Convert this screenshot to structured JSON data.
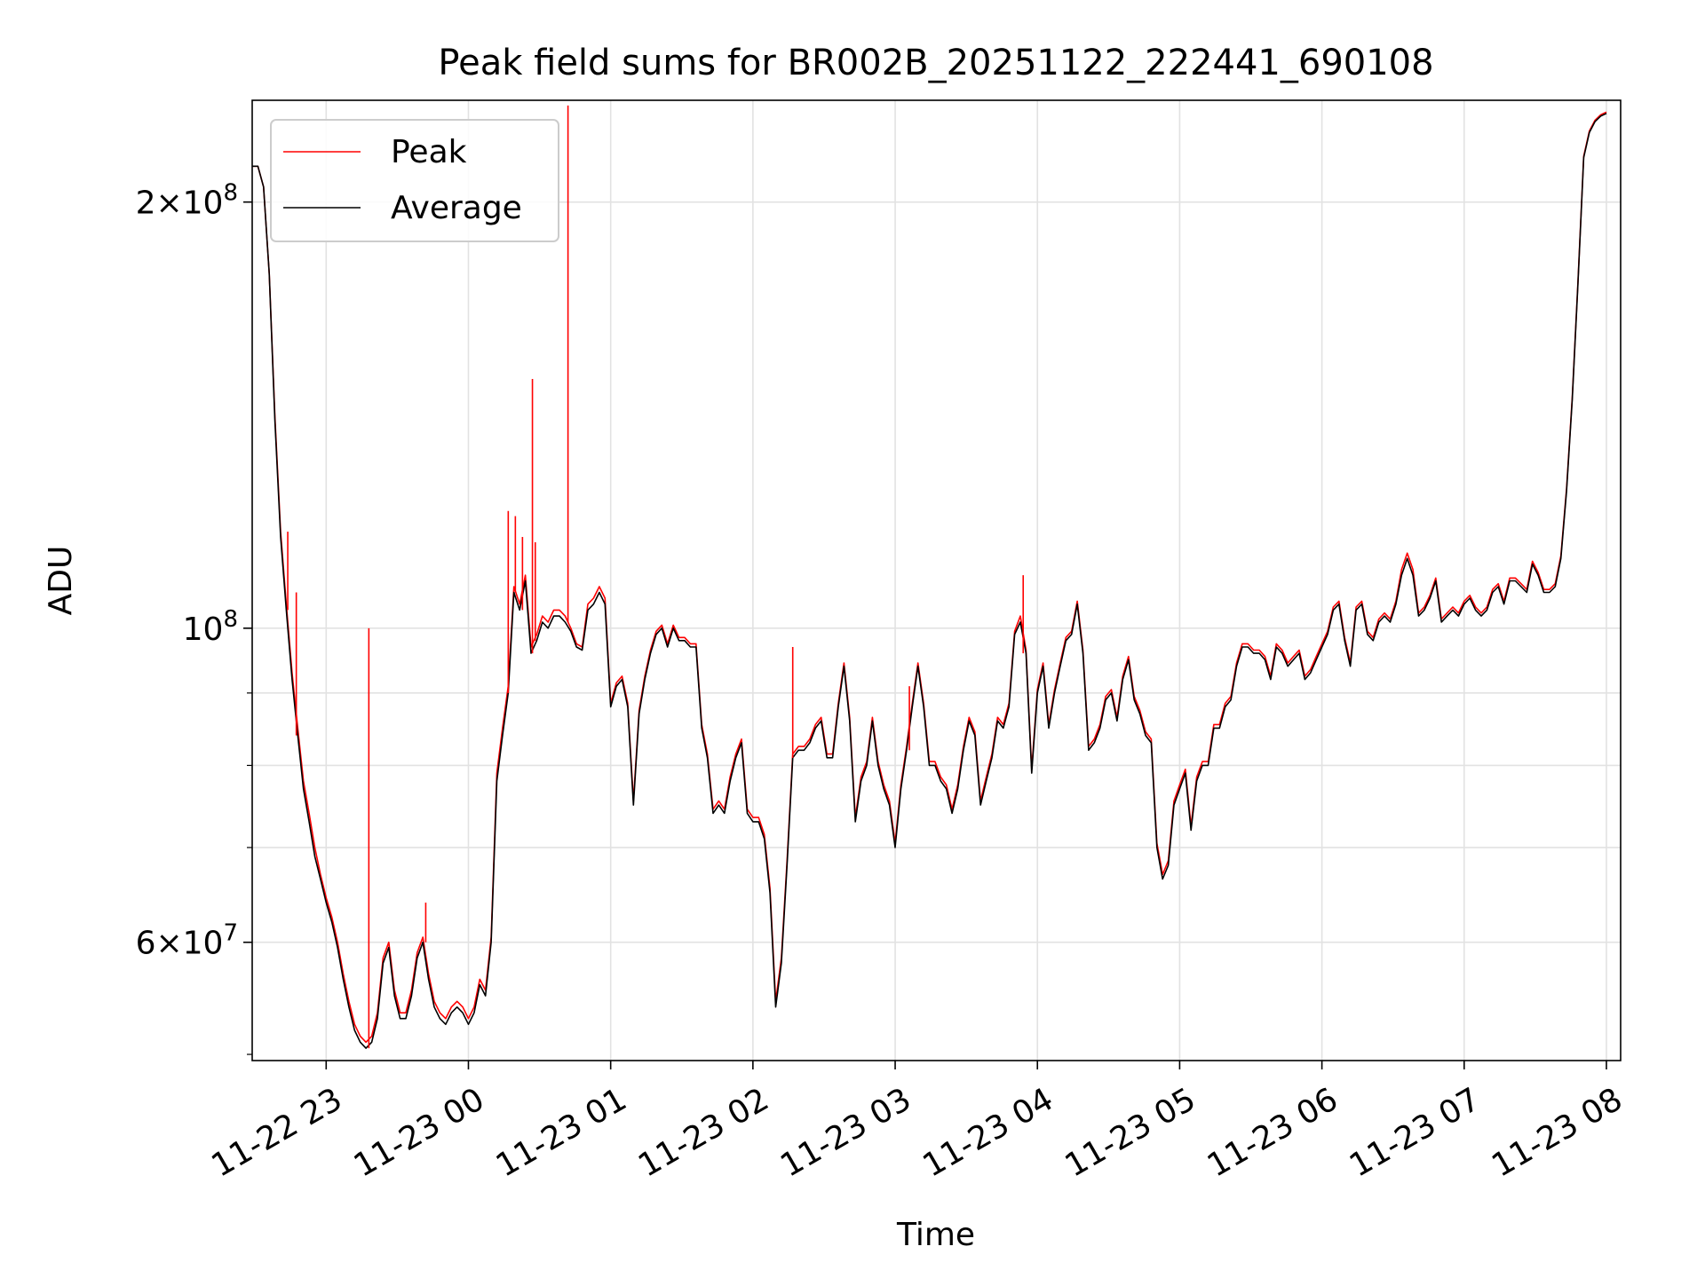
{
  "chart_data": {
    "type": "line",
    "title": "Peak field sums for BR002B_20251122_222441_690108",
    "xlabel": "Time",
    "ylabel": "ADU",
    "yscale": "log",
    "ylim": [
      49500000,
      236000000
    ],
    "xlim_hours": [
      -0.52,
      9.1
    ],
    "grid": true,
    "legend_position": "upper-left",
    "x_ticks": [
      {
        "hour": 0,
        "label": "11-22 23"
      },
      {
        "hour": 1,
        "label": "11-23 00"
      },
      {
        "hour": 2,
        "label": "11-23 01"
      },
      {
        "hour": 3,
        "label": "11-23 02"
      },
      {
        "hour": 4,
        "label": "11-23 03"
      },
      {
        "hour": 5,
        "label": "11-23 04"
      },
      {
        "hour": 6,
        "label": "11-23 05"
      },
      {
        "hour": 7,
        "label": "11-23 06"
      },
      {
        "hour": 8,
        "label": "11-23 07"
      },
      {
        "hour": 9,
        "label": "11-23 08"
      }
    ],
    "y_major_ticks": [
      {
        "value": 60000000,
        "mant": "6",
        "exp": "7"
      },
      {
        "value": 100000000,
        "mant": "",
        "exp": "8"
      },
      {
        "value": 200000000,
        "mant": "2",
        "exp": "8"
      }
    ],
    "y_minor_ticks": [
      50000000,
      70000000,
      80000000,
      90000000
    ],
    "x_hours": [
      -0.52,
      -0.48,
      -0.44,
      -0.4,
      -0.36,
      -0.32,
      -0.28,
      -0.24,
      -0.2,
      -0.16,
      -0.12,
      -0.08,
      -0.04,
      0.0,
      0.04,
      0.08,
      0.12,
      0.16,
      0.2,
      0.24,
      0.28,
      0.32,
      0.36,
      0.4,
      0.44,
      0.48,
      0.52,
      0.56,
      0.6,
      0.64,
      0.68,
      0.72,
      0.76,
      0.8,
      0.84,
      0.88,
      0.92,
      0.96,
      1.0,
      1.04,
      1.08,
      1.12,
      1.16,
      1.2,
      1.24,
      1.28,
      1.32,
      1.36,
      1.4,
      1.44,
      1.48,
      1.52,
      1.56,
      1.6,
      1.64,
      1.68,
      1.72,
      1.76,
      1.8,
      1.84,
      1.88,
      1.92,
      1.96,
      2.0,
      2.04,
      2.08,
      2.12,
      2.16,
      2.2,
      2.24,
      2.28,
      2.32,
      2.36,
      2.4,
      2.44,
      2.48,
      2.52,
      2.56,
      2.6,
      2.64,
      2.68,
      2.72,
      2.76,
      2.8,
      2.84,
      2.88,
      2.92,
      2.96,
      3.0,
      3.04,
      3.08,
      3.12,
      3.16,
      3.2,
      3.24,
      3.28,
      3.32,
      3.36,
      3.4,
      3.44,
      3.48,
      3.52,
      3.56,
      3.6,
      3.64,
      3.68,
      3.72,
      3.76,
      3.8,
      3.84,
      3.88,
      3.92,
      3.96,
      4.0,
      4.04,
      4.08,
      4.12,
      4.16,
      4.2,
      4.24,
      4.28,
      4.32,
      4.36,
      4.4,
      4.44,
      4.48,
      4.52,
      4.56,
      4.6,
      4.64,
      4.68,
      4.72,
      4.76,
      4.8,
      4.84,
      4.88,
      4.92,
      4.96,
      5.0,
      5.04,
      5.08,
      5.12,
      5.16,
      5.2,
      5.24,
      5.28,
      5.32,
      5.36,
      5.4,
      5.44,
      5.48,
      5.52,
      5.56,
      5.6,
      5.64,
      5.68,
      5.72,
      5.76,
      5.8,
      5.84,
      5.88,
      5.92,
      5.96,
      6.0,
      6.04,
      6.08,
      6.12,
      6.16,
      6.2,
      6.24,
      6.28,
      6.32,
      6.36,
      6.4,
      6.44,
      6.48,
      6.52,
      6.56,
      6.6,
      6.64,
      6.68,
      6.72,
      6.76,
      6.8,
      6.84,
      6.88,
      6.92,
      6.96,
      7.0,
      7.04,
      7.08,
      7.12,
      7.16,
      7.2,
      7.24,
      7.28,
      7.32,
      7.36,
      7.4,
      7.44,
      7.48,
      7.52,
      7.56,
      7.6,
      7.64,
      7.68,
      7.72,
      7.76,
      7.8,
      7.84,
      7.88,
      7.92,
      7.96,
      8.0,
      8.04,
      8.08,
      8.12,
      8.16,
      8.2,
      8.24,
      8.28,
      8.32,
      8.36,
      8.4,
      8.44,
      8.48,
      8.52,
      8.56,
      8.6,
      8.64,
      8.68,
      8.72,
      8.76,
      8.8,
      8.84,
      8.88,
      8.92,
      8.96,
      9.0,
      9.04,
      9.08,
      9.1
    ],
    "series": [
      {
        "name": "Average",
        "color": "#000000",
        "values": [
          212000000,
          212000000,
          205000000,
          178000000,
          140000000,
          116000000,
          103000000,
          92000000,
          84000000,
          77000000,
          73000000,
          69000000,
          66500000,
          64000000,
          62000000,
          59500000,
          56500000,
          54000000,
          52000000,
          51000000,
          50500000,
          51000000,
          53000000,
          58000000,
          59500000,
          55000000,
          53000000,
          53000000,
          55000000,
          58500000,
          60000000,
          56500000,
          54000000,
          53000000,
          52500000,
          53500000,
          54000000,
          53500000,
          52500000,
          53500000,
          56000000,
          55000000,
          60000000,
          78000000,
          84000000,
          90000000,
          106000000,
          103000000,
          108000000,
          96000000,
          98000000,
          101000000,
          100000000,
          102000000,
          102000000,
          101000000,
          99500000,
          97000000,
          96500000,
          103000000,
          104000000,
          106000000,
          104000000,
          88000000,
          91000000,
          92000000,
          88000000,
          75000000,
          87000000,
          92000000,
          96000000,
          99000000,
          100000000,
          97000000,
          100000000,
          98000000,
          98000000,
          97000000,
          97000000,
          85000000,
          81000000,
          74000000,
          75000000,
          74000000,
          78000000,
          81000000,
          83000000,
          74000000,
          73000000,
          73000000,
          71000000,
          65000000,
          54000000,
          58000000,
          68000000,
          81000000,
          82000000,
          82000000,
          83000000,
          85000000,
          86000000,
          81000000,
          81000000,
          88000000,
          94000000,
          86000000,
          73000000,
          78000000,
          80000000,
          86000000,
          80000000,
          77000000,
          75000000,
          70000000,
          77000000,
          82000000,
          88000000,
          94000000,
          88000000,
          80000000,
          80000000,
          78000000,
          77000000,
          74000000,
          77000000,
          82000000,
          86000000,
          84000000,
          75000000,
          78000000,
          81000000,
          86000000,
          85000000,
          88000000,
          99000000,
          101000000,
          96000000,
          79000000,
          90000000,
          94000000,
          85000000,
          90000000,
          94000000,
          98000000,
          99000000,
          104000000,
          96000000,
          82000000,
          83000000,
          85000000,
          89000000,
          90000000,
          86000000,
          92000000,
          95000000,
          89000000,
          87000000,
          84000000,
          83000000,
          70000000,
          66500000,
          68000000,
          75000000,
          77000000,
          79000000,
          72000000,
          78000000,
          80000000,
          80000000,
          85000000,
          85000000,
          88000000,
          89000000,
          94000000,
          97000000,
          97000000,
          96000000,
          96000000,
          95000000,
          92000000,
          97000000,
          96000000,
          94000000,
          95000000,
          96000000,
          92000000,
          93000000,
          95000000,
          97000000,
          99000000,
          103000000,
          104000000,
          98000000,
          94000000,
          103000000,
          104000000,
          99000000,
          98000000,
          101000000,
          102000000,
          101000000,
          104000000,
          109000000,
          112000000,
          109000000,
          102000000,
          103000000,
          105000000,
          108000000,
          101000000,
          102000000,
          103000000,
          102000000,
          104000000,
          105000000,
          103000000,
          102000000,
          103000000,
          106000000,
          107000000,
          104000000,
          108000000,
          108000000,
          107000000,
          106000000,
          111000000,
          109000000,
          106000000,
          106000000,
          107000000,
          112000000,
          125000000,
          145000000,
          175000000,
          215000000,
          224000000,
          228000000,
          230000000,
          231000000
        ]
      },
      {
        "name": "Peak",
        "color": "#ff0000",
        "values": [
          212000000,
          212000000,
          205000000,
          178000000,
          141000000,
          117000000,
          104000000,
          93000000,
          85000000,
          78000000,
          74000000,
          70000000,
          67000000,
          64500000,
          62500000,
          60000000,
          57000000,
          54500000,
          52500000,
          51500000,
          51000000,
          51500000,
          53500000,
          58500000,
          60000000,
          55500000,
          53500000,
          53500000,
          55500000,
          59000000,
          60500000,
          57000000,
          54500000,
          53500000,
          53000000,
          54000000,
          54500000,
          54000000,
          53000000,
          54000000,
          56500000,
          55500000,
          60500000,
          79000000,
          85000000,
          91000000,
          107000000,
          104000000,
          109000000,
          97000000,
          99000000,
          102000000,
          101000000,
          103000000,
          103000000,
          102000000,
          100000000,
          97500000,
          97000000,
          104000000,
          105000000,
          107000000,
          105000000,
          88500000,
          91500000,
          92500000,
          88500000,
          75500000,
          87500000,
          92500000,
          96500000,
          99500000,
          100500000,
          97500000,
          100500000,
          98500000,
          98500000,
          97500000,
          97500000,
          85500000,
          81500000,
          74500000,
          75500000,
          74500000,
          78500000,
          81500000,
          83500000,
          74500000,
          73500000,
          73500000,
          71500000,
          65500000,
          54500000,
          58500000,
          68500000,
          81500000,
          82500000,
          82500000,
          83500000,
          85500000,
          86500000,
          81500000,
          81500000,
          88500000,
          94500000,
          86500000,
          73500000,
          78500000,
          80500000,
          86500000,
          80500000,
          77500000,
          75500000,
          70500000,
          77500000,
          82500000,
          88500000,
          94500000,
          88500000,
          80500000,
          80500000,
          78500000,
          77500000,
          74500000,
          77500000,
          82500000,
          86500000,
          84500000,
          75500000,
          78500000,
          81500000,
          86500000,
          85500000,
          88500000,
          99500000,
          102000000,
          96500000,
          79500000,
          90500000,
          94500000,
          85500000,
          90500000,
          94500000,
          98500000,
          99500000,
          104500000,
          96500000,
          82500000,
          83500000,
          85500000,
          89500000,
          90500000,
          86500000,
          92500000,
          95500000,
          89500000,
          87500000,
          84500000,
          83500000,
          70500000,
          67000000,
          68500000,
          75500000,
          77500000,
          79500000,
          72500000,
          78500000,
          80500000,
          80500000,
          85500000,
          85500000,
          88500000,
          89500000,
          94500000,
          97500000,
          97500000,
          96500000,
          96500000,
          95500000,
          92500000,
          97500000,
          96500000,
          94500000,
          95500000,
          96500000,
          92500000,
          93500000,
          95500000,
          97500000,
          99500000,
          103500000,
          104500000,
          98500000,
          94500000,
          103500000,
          104500000,
          99500000,
          98500000,
          101500000,
          102500000,
          101500000,
          104500000,
          110000000,
          113000000,
          110000000,
          102500000,
          103500000,
          105500000,
          108500000,
          101500000,
          102500000,
          103500000,
          102500000,
          104500000,
          105500000,
          103500000,
          102500000,
          103500000,
          106500000,
          107500000,
          104500000,
          108500000,
          108500000,
          107500000,
          106500000,
          111500000,
          109500000,
          106500000,
          106500000,
          107500000,
          112500000,
          125500000,
          145500000,
          175500000,
          215500000,
          224500000,
          228500000,
          230500000,
          231500000
        ]
      }
    ],
    "peak_spikes": [
      {
        "hour": -0.27,
        "value": 117000000
      },
      {
        "hour": -0.21,
        "value": 106000000
      },
      {
        "hour": 0.3,
        "value": 100000000
      },
      {
        "hour": 0.7,
        "value": 64000000
      },
      {
        "hour": 1.28,
        "value": 121000000
      },
      {
        "hour": 1.33,
        "value": 120000000
      },
      {
        "hour": 1.38,
        "value": 116000000
      },
      {
        "hour": 1.45,
        "value": 150000000
      },
      {
        "hour": 1.47,
        "value": 115000000
      },
      {
        "hour": 1.7,
        "value": 234000000
      },
      {
        "hour": 3.28,
        "value": 97000000
      },
      {
        "hour": 4.1,
        "value": 91000000
      },
      {
        "hour": 4.9,
        "value": 109000000
      }
    ]
  }
}
